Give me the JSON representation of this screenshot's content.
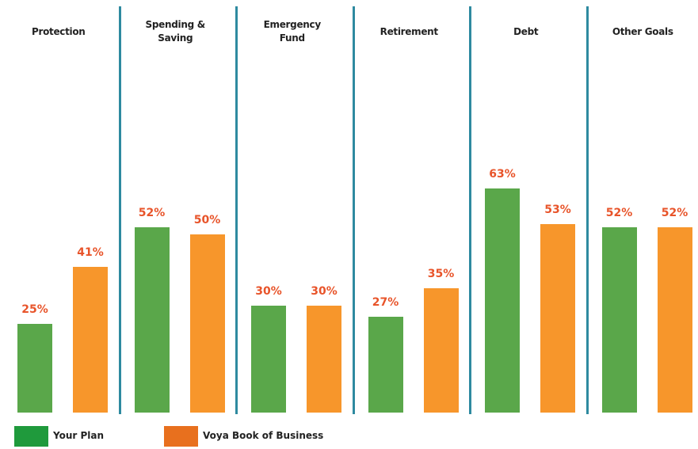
{
  "chart_data": {
    "type": "bar",
    "categories": [
      "Protection",
      "Spending & Saving",
      "Emergency Fund",
      "Retirement",
      "Debt",
      "Other Goals"
    ],
    "series": [
      {
        "name": "Your Plan",
        "color": "#5aa74a",
        "legend_color": "#1f9a3c",
        "values": [
          25,
          52,
          30,
          27,
          63,
          52
        ],
        "value_labels": [
          "25%",
          "52%",
          "30%",
          "27%",
          "63%",
          "52%"
        ]
      },
      {
        "name": "Voya Book of Business",
        "color": "#f7962b",
        "legend_color": "#e8701e",
        "values": [
          41,
          50,
          30,
          35,
          53,
          52
        ],
        "value_labels": [
          "41%",
          "50%",
          "30%",
          "35%",
          "53%",
          "52%"
        ]
      }
    ]
  }
}
